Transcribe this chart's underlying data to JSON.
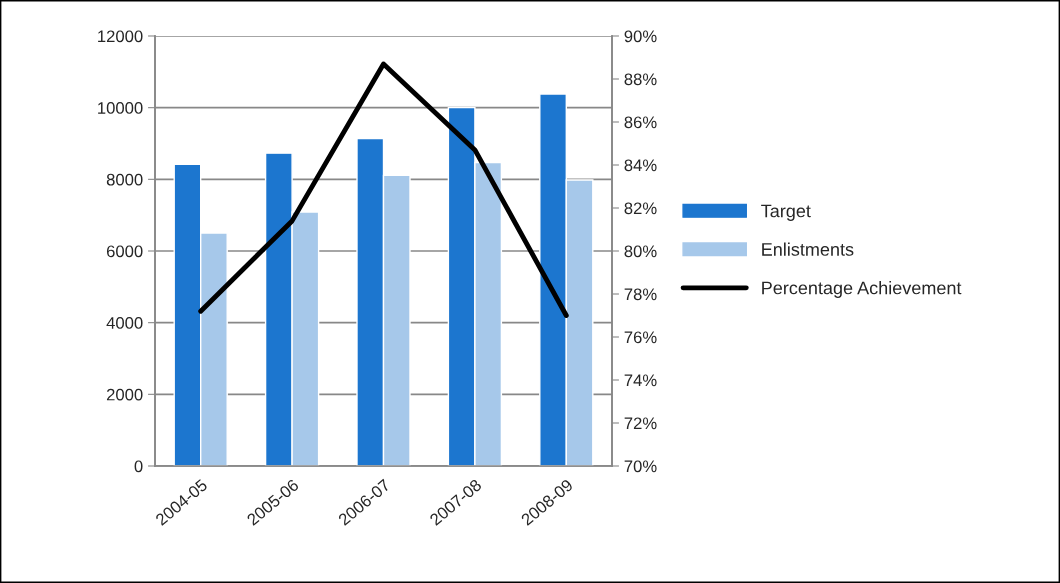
{
  "chart_data": {
    "type": "bar",
    "categories": [
      "2004-05",
      "2005-06",
      "2006-07",
      "2007-08",
      "2008-09"
    ],
    "series": [
      {
        "name": "Target",
        "color": "#1c76cf",
        "values": [
          8420,
          8730,
          9140,
          10000,
          10380
        ]
      },
      {
        "name": "Enlistments",
        "color": "#a6c8ea",
        "values": [
          6500,
          7090,
          8110,
          8470,
          7980
        ]
      },
      {
        "name": "Percentage Achievement",
        "type": "line",
        "axis": "y2",
        "color": "#000000",
        "values": [
          77.2,
          81.4,
          88.7,
          84.7,
          77.0
        ]
      }
    ],
    "ylim": [
      0,
      12000
    ],
    "yticks": [
      0,
      2000,
      4000,
      6000,
      8000,
      10000,
      12000
    ],
    "y2lim": [
      70,
      90
    ],
    "y2ticks": [
      {
        "value": 70,
        "label": "70%"
      },
      {
        "value": 72,
        "label": "72%"
      },
      {
        "value": 74,
        "label": "74%"
      },
      {
        "value": 76,
        "label": "76%"
      },
      {
        "value": 78,
        "label": "78%"
      },
      {
        "value": 80,
        "label": "80%"
      },
      {
        "value": 82,
        "label": "82%"
      },
      {
        "value": 84,
        "label": "84%"
      },
      {
        "value": 86,
        "label": "86%"
      },
      {
        "value": 88,
        "label": "88%"
      },
      {
        "value": 90,
        "label": "90%"
      }
    ],
    "grid": "y",
    "legend": "right",
    "line_style": "solid",
    "marker": "none"
  }
}
